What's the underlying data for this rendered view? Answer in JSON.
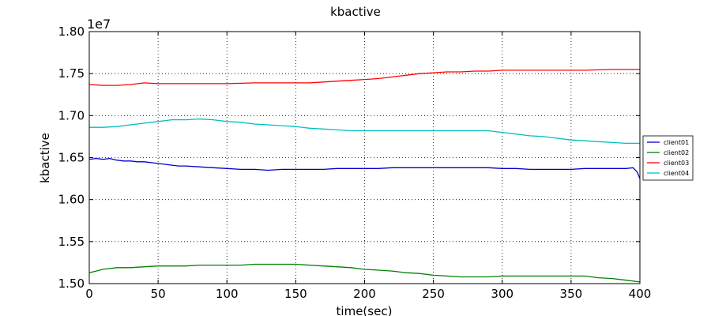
{
  "chart_data": {
    "type": "line",
    "title": "kbactive",
    "xlabel": "time(sec)",
    "ylabel": "kbactive",
    "y_multiplier_label": "1e7",
    "xlim": [
      0,
      400
    ],
    "ylim": [
      1.5,
      1.8
    ],
    "x_ticks": [
      0,
      50,
      100,
      150,
      200,
      250,
      300,
      350,
      400
    ],
    "y_ticks": [
      1.5,
      1.55,
      1.6,
      1.65,
      1.7,
      1.75,
      1.8
    ],
    "x_tick_labels": [
      "0",
      "50",
      "100",
      "150",
      "200",
      "250",
      "300",
      "350",
      "400"
    ],
    "y_tick_labels": [
      "1.50",
      "1.55",
      "1.60",
      "1.65",
      "1.70",
      "1.75",
      "1.80"
    ],
    "grid": true,
    "legend_position": "right",
    "series": [
      {
        "name": "client01",
        "color": "#0000cc",
        "x": [
          0,
          5,
          10,
          15,
          20,
          25,
          30,
          35,
          40,
          45,
          50,
          55,
          60,
          65,
          70,
          80,
          90,
          100,
          110,
          120,
          130,
          140,
          150,
          160,
          170,
          180,
          190,
          200,
          210,
          220,
          230,
          240,
          250,
          260,
          270,
          280,
          290,
          300,
          310,
          320,
          330,
          340,
          350,
          360,
          370,
          380,
          390,
          395,
          398,
          400
        ],
        "values": [
          1.648,
          1.649,
          1.648,
          1.649,
          1.647,
          1.646,
          1.646,
          1.645,
          1.645,
          1.644,
          1.643,
          1.642,
          1.641,
          1.64,
          1.64,
          1.639,
          1.638,
          1.637,
          1.636,
          1.636,
          1.635,
          1.636,
          1.636,
          1.636,
          1.636,
          1.637,
          1.637,
          1.637,
          1.637,
          1.638,
          1.638,
          1.638,
          1.638,
          1.638,
          1.638,
          1.638,
          1.638,
          1.637,
          1.637,
          1.636,
          1.636,
          1.636,
          1.636,
          1.637,
          1.637,
          1.637,
          1.637,
          1.638,
          1.633,
          1.625
        ]
      },
      {
        "name": "client02",
        "color": "#008000",
        "x": [
          0,
          5,
          10,
          15,
          20,
          30,
          40,
          50,
          60,
          70,
          80,
          90,
          100,
          110,
          120,
          130,
          140,
          150,
          160,
          170,
          180,
          190,
          200,
          210,
          220,
          230,
          240,
          250,
          260,
          270,
          280,
          290,
          300,
          310,
          320,
          330,
          340,
          350,
          360,
          370,
          380,
          390,
          400
        ],
        "values": [
          1.513,
          1.515,
          1.517,
          1.518,
          1.519,
          1.519,
          1.52,
          1.521,
          1.521,
          1.521,
          1.522,
          1.522,
          1.522,
          1.522,
          1.523,
          1.523,
          1.523,
          1.523,
          1.522,
          1.521,
          1.52,
          1.519,
          1.517,
          1.516,
          1.515,
          1.513,
          1.512,
          1.51,
          1.509,
          1.508,
          1.508,
          1.508,
          1.509,
          1.509,
          1.509,
          1.509,
          1.509,
          1.509,
          1.509,
          1.507,
          1.506,
          1.504,
          1.502
        ]
      },
      {
        "name": "client03",
        "color": "#ff0000",
        "x": [
          0,
          10,
          20,
          30,
          40,
          50,
          60,
          80,
          100,
          120,
          140,
          160,
          170,
          180,
          190,
          200,
          210,
          220,
          230,
          240,
          250,
          260,
          270,
          280,
          290,
          300,
          320,
          340,
          360,
          380,
          400
        ],
        "values": [
          1.737,
          1.736,
          1.736,
          1.737,
          1.739,
          1.738,
          1.738,
          1.738,
          1.738,
          1.739,
          1.739,
          1.739,
          1.74,
          1.741,
          1.742,
          1.743,
          1.744,
          1.746,
          1.748,
          1.75,
          1.751,
          1.752,
          1.752,
          1.753,
          1.753,
          1.754,
          1.754,
          1.754,
          1.754,
          1.755,
          1.755
        ]
      },
      {
        "name": "client04",
        "color": "#00bfbf",
        "x": [
          0,
          10,
          20,
          30,
          40,
          50,
          60,
          70,
          80,
          90,
          100,
          110,
          120,
          130,
          140,
          150,
          160,
          170,
          180,
          190,
          200,
          210,
          220,
          230,
          240,
          250,
          260,
          270,
          280,
          290,
          300,
          310,
          320,
          330,
          340,
          350,
          360,
          370,
          380,
          390,
          400
        ],
        "values": [
          1.686,
          1.686,
          1.687,
          1.689,
          1.691,
          1.693,
          1.695,
          1.695,
          1.696,
          1.695,
          1.693,
          1.692,
          1.69,
          1.689,
          1.688,
          1.687,
          1.685,
          1.684,
          1.683,
          1.682,
          1.682,
          1.682,
          1.682,
          1.682,
          1.682,
          1.682,
          1.682,
          1.682,
          1.682,
          1.682,
          1.68,
          1.678,
          1.676,
          1.675,
          1.673,
          1.671,
          1.67,
          1.669,
          1.668,
          1.667,
          1.667
        ]
      }
    ]
  }
}
